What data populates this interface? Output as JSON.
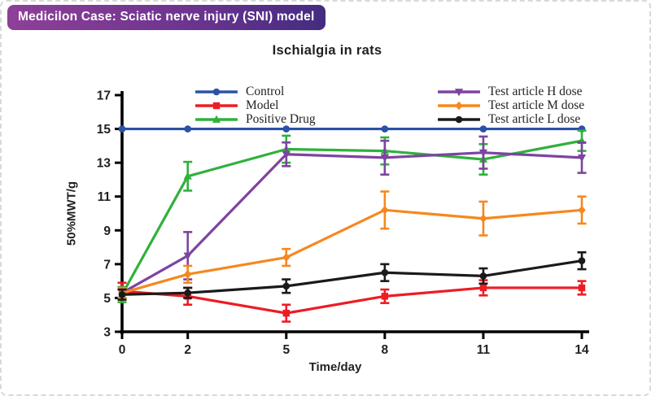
{
  "header": {
    "badge": "Medicilon Case: Sciatic nerve injury (SNI) model"
  },
  "theme": {
    "badge_gradient_from": "#8e4097",
    "badge_gradient_to": "#442c80",
    "card_border_color": "#d9d9d9",
    "axis_color": "#000000",
    "text_color": "#231f20"
  },
  "chart_data": {
    "type": "line",
    "title": "Ischialgia in rats",
    "xlabel": "Time/day",
    "ylabel": "50%MWT/g",
    "grid": false,
    "legend_position": "top-inside-two-columns",
    "x": [
      0,
      2,
      5,
      8,
      11,
      14
    ],
    "xticks": [
      0,
      2,
      5,
      8,
      11,
      14
    ],
    "xlim": [
      0,
      14
    ],
    "yticks": [
      3,
      5,
      7,
      9,
      11,
      13,
      15,
      17
    ],
    "ylim": [
      3,
      17
    ],
    "series": [
      {
        "name": "Control",
        "color": "#2a52a5",
        "marker": "circle",
        "values": [
          15,
          15,
          15,
          15,
          15,
          15
        ],
        "err": [
          0,
          0,
          0,
          0,
          0,
          0
        ]
      },
      {
        "name": "Model",
        "color": "#ec1c24",
        "marker": "square",
        "values": [
          5.4,
          5.1,
          4.1,
          5.1,
          5.6,
          5.6
        ],
        "err": [
          0.5,
          0.5,
          0.5,
          0.4,
          0.45,
          0.4
        ]
      },
      {
        "name": "Positive Drug",
        "color": "#2fb13c",
        "marker": "triangle-up",
        "values": [
          5.2,
          12.2,
          13.8,
          13.7,
          13.2,
          14.3
        ],
        "err": [
          0.45,
          0.85,
          0.8,
          0.8,
          0.9,
          0.6
        ]
      },
      {
        "name": "Test article H dose",
        "color": "#7d44a0",
        "marker": "triangle-down",
        "values": [
          5.3,
          7.5,
          13.5,
          13.3,
          13.6,
          13.3
        ],
        "err": [
          0.3,
          1.4,
          0.7,
          1.0,
          0.95,
          0.9
        ]
      },
      {
        "name": "Test article M dose",
        "color": "#f6881f",
        "marker": "diamond",
        "values": [
          5.3,
          6.4,
          7.4,
          10.2,
          9.7,
          10.2
        ],
        "err": [
          0.3,
          0.5,
          0.5,
          1.1,
          1.0,
          0.8
        ]
      },
      {
        "name": "Test article L dose",
        "color": "#1a1a1a",
        "marker": "circle",
        "values": [
          5.2,
          5.3,
          5.7,
          6.5,
          6.3,
          7.2
        ],
        "err": [
          0.3,
          0.3,
          0.4,
          0.5,
          0.45,
          0.5
        ]
      }
    ]
  }
}
